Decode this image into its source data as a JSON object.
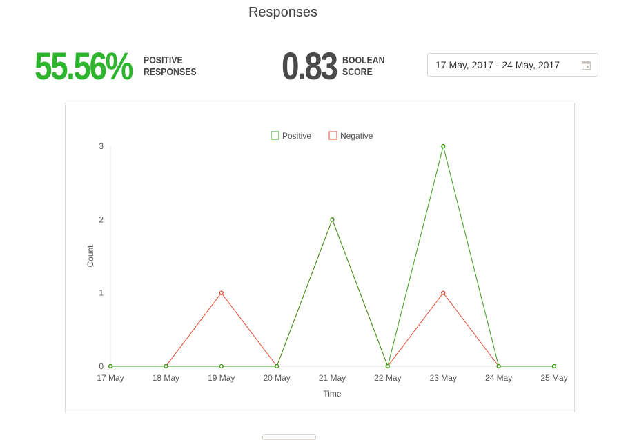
{
  "page": {
    "title": "Responses"
  },
  "stats": {
    "positive": {
      "value": "55.56%",
      "label_line1": "POSITIVE",
      "label_line2": "RESPONSES",
      "color": "#2db52d"
    },
    "boolean": {
      "value": "0.83",
      "label_line1": "BOOLEAN",
      "label_line2": "SCORE",
      "color": "#4a4a4a"
    }
  },
  "date_range": {
    "value": "17 May, 2017 - 24 May, 2017",
    "icon": "calendar-icon"
  },
  "chart_data": {
    "type": "line",
    "title": "",
    "xlabel": "Time",
    "ylabel": "Count",
    "categories": [
      "17 May",
      "18 May",
      "19 May",
      "20 May",
      "21 May",
      "22 May",
      "23 May",
      "24 May",
      "25 May"
    ],
    "ylim": [
      0,
      3
    ],
    "yticks": [
      "0",
      "1",
      "2",
      "3"
    ],
    "legend_position": "top",
    "grid": false,
    "series": [
      {
        "name": "Positive",
        "color": "#3a9a1a",
        "values": [
          0,
          0,
          0,
          0,
          2,
          0,
          3,
          0,
          0
        ]
      },
      {
        "name": "Negative",
        "color": "#e8452c",
        "values": [
          0,
          0,
          1,
          0,
          2,
          0,
          1,
          0,
          null
        ]
      }
    ]
  }
}
